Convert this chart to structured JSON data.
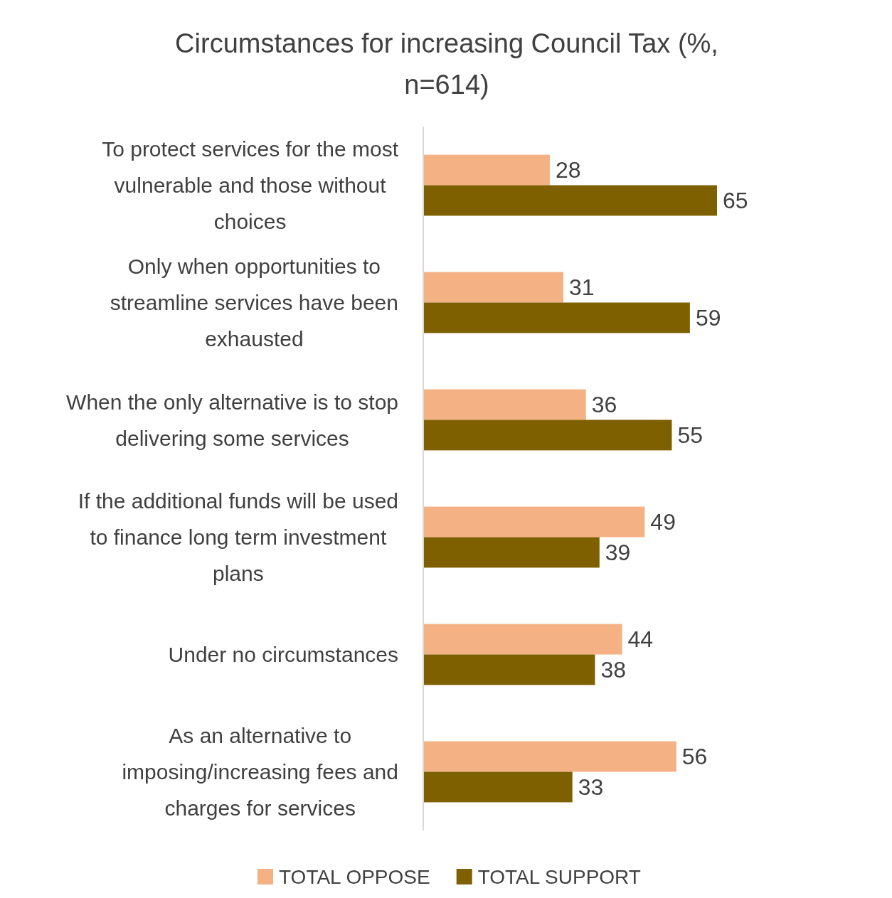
{
  "chart_data": {
    "type": "bar",
    "orientation": "horizontal",
    "title": "Circumstances for increasing Council Tax (%, n=614)",
    "categories": [
      "To protect services for the most vulnerable and those without choices",
      "Only when opportunities to streamline services have been exhausted",
      "When the only alternative is to stop delivering some services",
      "If the additional funds will be used to finance long term investment plans",
      "Under no circumstances",
      "As an alternative to imposing/increasing fees and charges for services"
    ],
    "series": [
      {
        "name": "TOTAL OPPOSE",
        "color": "#f4b183",
        "values": [
          28,
          31,
          36,
          49,
          44,
          56
        ]
      },
      {
        "name": "TOTAL SUPPORT",
        "color": "#7f6000",
        "values": [
          65,
          59,
          55,
          39,
          38,
          33
        ]
      }
    ],
    "data_labels": true,
    "legend": "bottom"
  }
}
